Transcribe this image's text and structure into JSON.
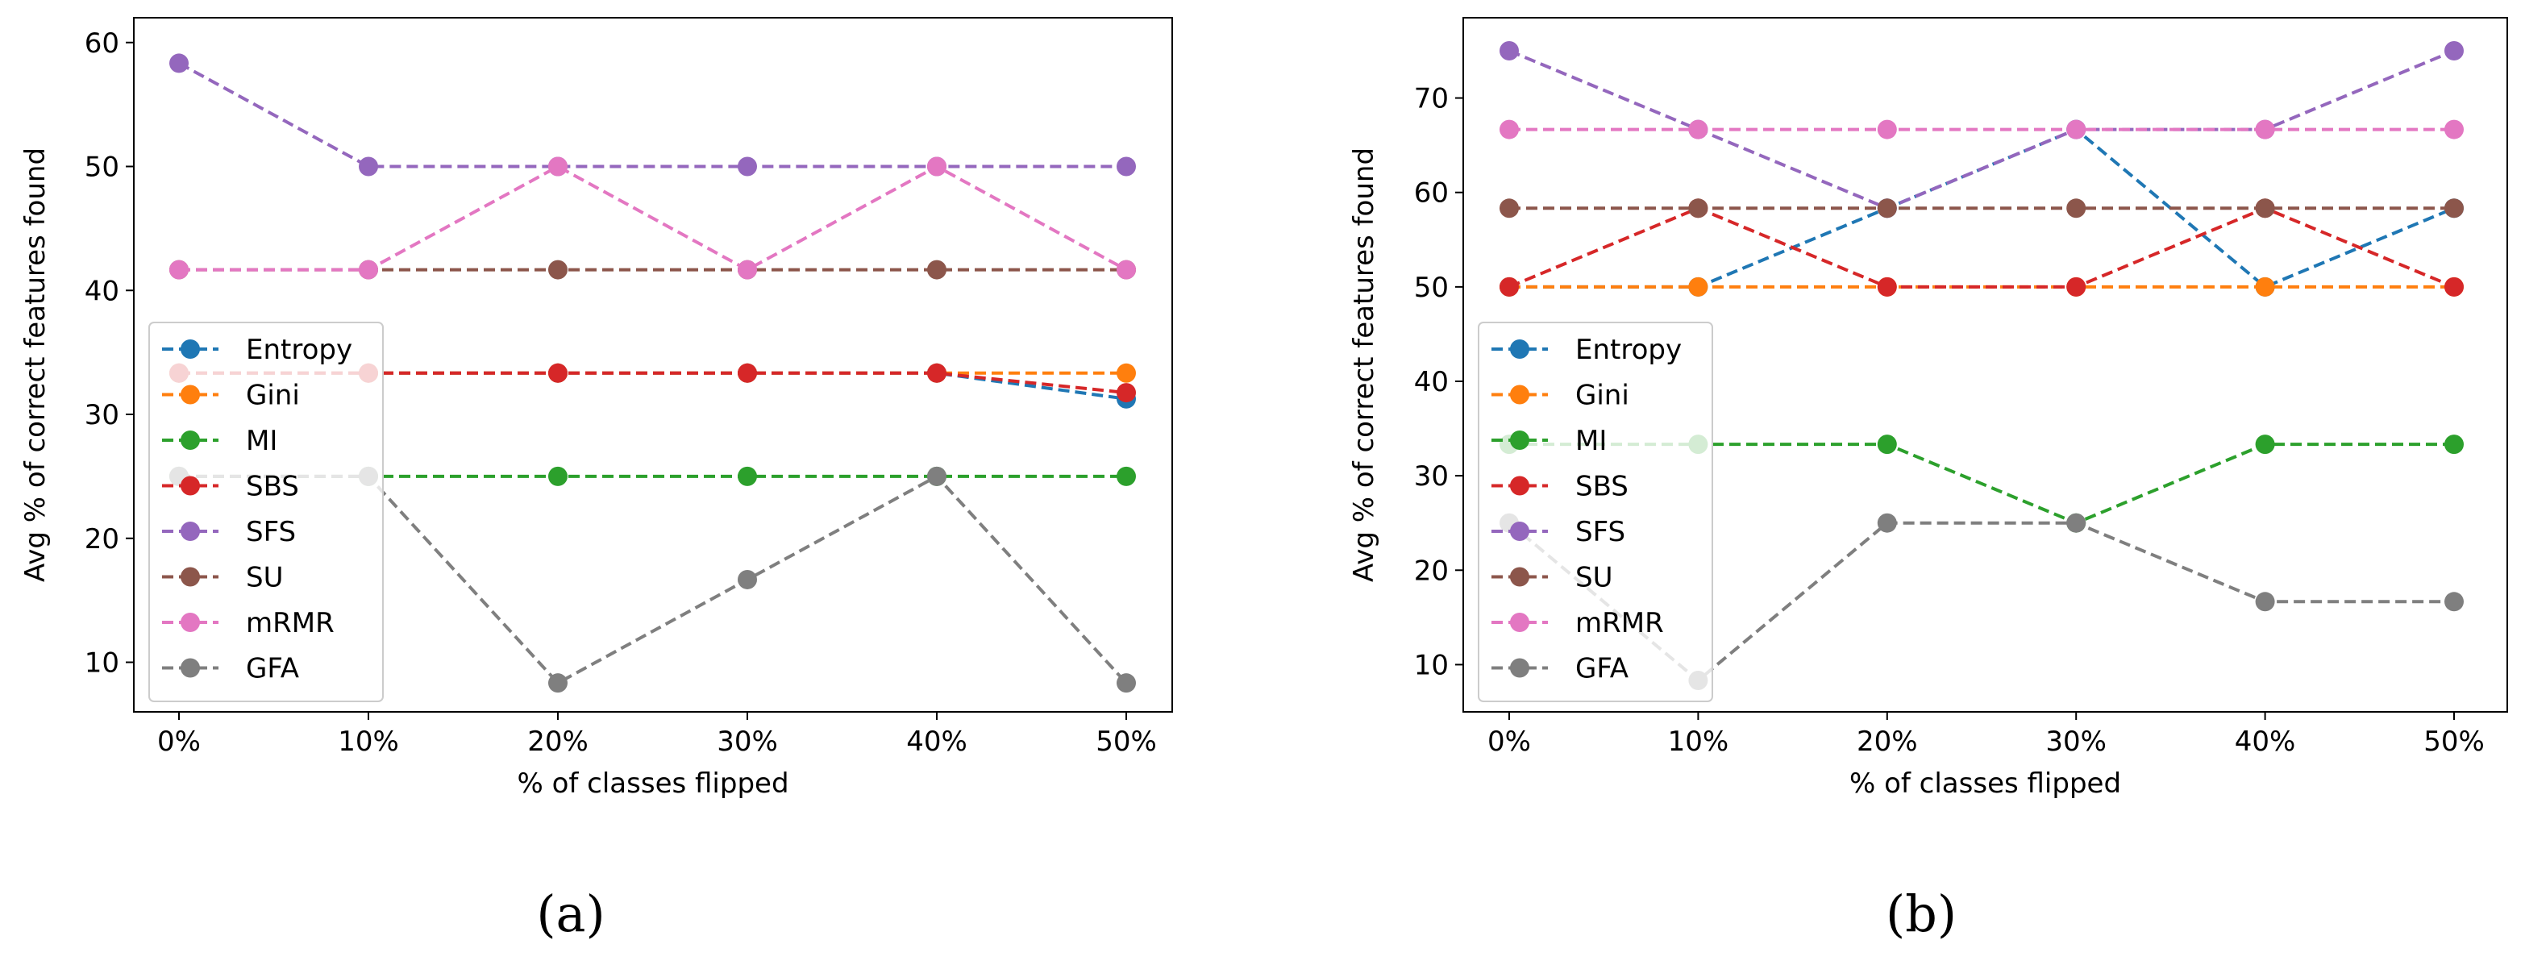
{
  "chart_data": [
    {
      "panel": "(a)",
      "type": "line",
      "xlabel": "% of classes flipped",
      "ylabel": "Avg % of correct features found",
      "categories": [
        "0%",
        "10%",
        "20%",
        "30%",
        "40%",
        "50%"
      ],
      "ylim": [
        6,
        62
      ],
      "yticks": [
        10,
        20,
        30,
        40,
        50,
        60
      ],
      "legend_position": "lower-left",
      "series": [
        {
          "name": "Entropy",
          "color": "#1f77b4",
          "values": [
            33.33,
            33.33,
            33.33,
            33.33,
            33.33,
            31.25
          ]
        },
        {
          "name": "Gini",
          "color": "#ff7f0e",
          "values": [
            33.33,
            33.33,
            33.33,
            33.33,
            33.33,
            33.33
          ]
        },
        {
          "name": "MI",
          "color": "#2ca02c",
          "values": [
            25,
            25,
            25,
            25,
            25,
            25
          ]
        },
        {
          "name": "SBS",
          "color": "#d62728",
          "values": [
            33.33,
            33.33,
            33.33,
            33.33,
            33.33,
            31.75
          ]
        },
        {
          "name": "SFS",
          "color": "#9467bd",
          "values": [
            58.33,
            50,
            50,
            50,
            50,
            50
          ]
        },
        {
          "name": "SU",
          "color": "#8c564b",
          "values": [
            41.67,
            41.67,
            41.67,
            41.67,
            41.67,
            41.67
          ]
        },
        {
          "name": "mRMR",
          "color": "#e377c2",
          "values": [
            41.67,
            41.67,
            50,
            41.67,
            50,
            41.67
          ]
        },
        {
          "name": "GFA",
          "color": "#7f7f7f",
          "values": [
            25,
            25,
            8.33,
            16.67,
            25,
            8.33
          ]
        }
      ]
    },
    {
      "panel": "(b)",
      "type": "line",
      "xlabel": "% of classes flipped",
      "ylabel": "Avg % of correct features found",
      "categories": [
        "0%",
        "10%",
        "20%",
        "30%",
        "40%",
        "50%"
      ],
      "ylim": [
        5,
        78.5
      ],
      "yticks": [
        10,
        20,
        30,
        40,
        50,
        60,
        70
      ],
      "legend_position": "lower-left",
      "series": [
        {
          "name": "Entropy",
          "color": "#1f77b4",
          "values": [
            50,
            50,
            58.33,
            66.67,
            50,
            58.33
          ]
        },
        {
          "name": "Gini",
          "color": "#ff7f0e",
          "values": [
            50,
            50,
            50,
            50,
            50,
            50
          ]
        },
        {
          "name": "MI",
          "color": "#2ca02c",
          "values": [
            33.33,
            33.33,
            33.33,
            25,
            33.33,
            33.33
          ]
        },
        {
          "name": "SBS",
          "color": "#d62728",
          "values": [
            50,
            58.33,
            50,
            50,
            58.33,
            50
          ]
        },
        {
          "name": "SFS",
          "color": "#9467bd",
          "values": [
            75,
            66.67,
            58.33,
            66.67,
            66.67,
            75
          ]
        },
        {
          "name": "SU",
          "color": "#8c564b",
          "values": [
            58.33,
            58.33,
            58.33,
            58.33,
            58.33,
            58.33
          ]
        },
        {
          "name": "mRMR",
          "color": "#e377c2",
          "values": [
            66.67,
            66.67,
            66.67,
            66.67,
            66.67,
            66.67
          ]
        },
        {
          "name": "GFA",
          "color": "#7f7f7f",
          "values": [
            25,
            8.33,
            25,
            25,
            16.67,
            16.67
          ]
        }
      ]
    }
  ]
}
